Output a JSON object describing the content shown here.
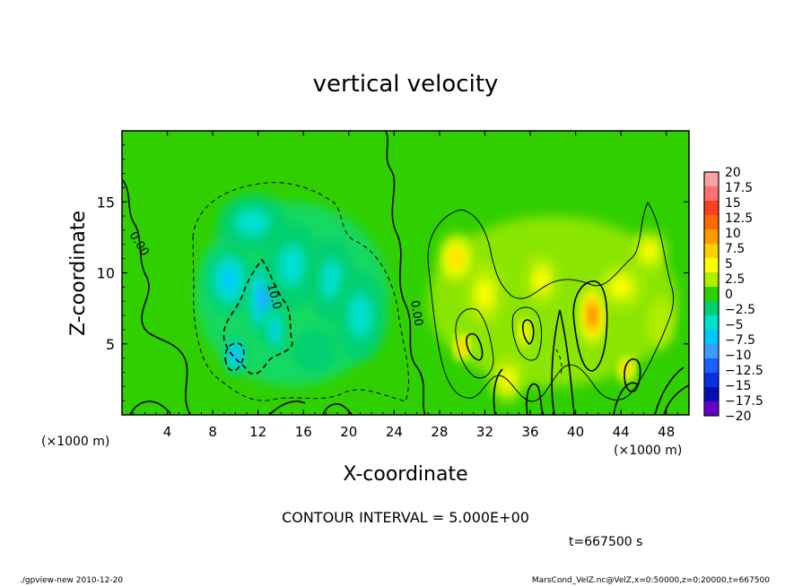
{
  "chart_data": {
    "type": "heatmap",
    "title": "vertical velocity",
    "xlabel": "X-coordinate",
    "ylabel": "Z-coordinate",
    "x_unit_label": "(×1000 m)",
    "x_unit_label_right": "(×1000 m)",
    "xlim": [
      0,
      50
    ],
    "ylim": [
      0,
      20
    ],
    "xticks": [
      4,
      8,
      12,
      16,
      20,
      24,
      28,
      32,
      36,
      40,
      44,
      48
    ],
    "yticks": [
      5,
      10,
      15
    ],
    "colorbar": {
      "labels": [
        "20",
        "17.5",
        "15",
        "12.5",
        "10",
        "7.5",
        "5",
        "2.5",
        "0",
        "−2.5",
        "−5",
        "−7.5",
        "−10",
        "−12.5",
        "−15",
        "−17.5",
        "−20"
      ],
      "colors": [
        "#ffa0a0",
        "#ff7070",
        "#ff4020",
        "#ff6a00",
        "#ff9a00",
        "#ffd000",
        "#ffff00",
        "#b0ee00",
        "#30d000",
        "#00d070",
        "#00e0d0",
        "#00c8ff",
        "#3a9cff",
        "#1a60ff",
        "#0830e0",
        "#0010b0",
        "#6a00c8"
      ]
    },
    "contour_labels": [
      "0.00",
      "10.0",
      "0.00"
    ],
    "contour_interval": "CONTOUR INTERVAL = 5.000E+00",
    "time_label": "t=667500 s",
    "blobs": [
      {
        "sign": "neg",
        "x": 9.5,
        "z": 9.5,
        "sx": 2.2,
        "sy": 2.5,
        "w": -6.5
      },
      {
        "sign": "neg",
        "x": 12.5,
        "z": 8.2,
        "sx": 1.6,
        "sy": 2.8,
        "w": -10
      },
      {
        "sign": "neg",
        "x": 10.0,
        "z": 4.2,
        "sx": 1.0,
        "sy": 1.4,
        "w": -9
      },
      {
        "sign": "neg",
        "x": 13.5,
        "z": 6.0,
        "sx": 1.0,
        "sy": 1.8,
        "w": -7
      },
      {
        "sign": "neg",
        "x": 15.0,
        "z": 10.5,
        "sx": 2.5,
        "sy": 3.0,
        "w": -5
      },
      {
        "sign": "neg",
        "x": 18.5,
        "z": 9.5,
        "sx": 2.0,
        "sy": 3.0,
        "w": -4.5
      },
      {
        "sign": "neg",
        "x": 21.0,
        "z": 7.0,
        "sx": 2.2,
        "sy": 3.2,
        "w": -4
      },
      {
        "sign": "neg",
        "x": 11.5,
        "z": 13.5,
        "sx": 3.0,
        "sy": 2.0,
        "w": -4
      },
      {
        "sign": "neg",
        "x": 17.0,
        "z": 4.5,
        "sx": 2.0,
        "sy": 1.5,
        "w": -3.5
      },
      {
        "sign": "pos",
        "x": 41.5,
        "z": 7.0,
        "sx": 1.2,
        "sy": 2.2,
        "w": 13
      },
      {
        "sign": "pos",
        "x": 44.5,
        "z": 3.2,
        "sx": 0.8,
        "sy": 1.0,
        "w": 11
      },
      {
        "sign": "pos",
        "x": 30.0,
        "z": 4.8,
        "sx": 0.8,
        "sy": 1.0,
        "w": 9
      },
      {
        "sign": "pos",
        "x": 35.5,
        "z": 5.8,
        "sx": 0.7,
        "sy": 1.2,
        "w": 8
      },
      {
        "sign": "pos",
        "x": 29.5,
        "z": 11.0,
        "sx": 1.6,
        "sy": 1.8,
        "w": 7
      },
      {
        "sign": "pos",
        "x": 37.0,
        "z": 9.5,
        "sx": 1.5,
        "sy": 1.8,
        "w": 6
      },
      {
        "sign": "pos",
        "x": 32.0,
        "z": 8.5,
        "sx": 1.6,
        "sy": 2.2,
        "w": 5
      },
      {
        "sign": "pos",
        "x": 46.5,
        "z": 11.5,
        "sx": 1.5,
        "sy": 1.5,
        "w": 4.5
      },
      {
        "sign": "pos",
        "x": 44.0,
        "z": 9.0,
        "sx": 2.0,
        "sy": 1.6,
        "w": 4
      },
      {
        "sign": "pos",
        "x": 34.0,
        "z": 2.5,
        "sx": 1.5,
        "sy": 1.6,
        "w": 4
      },
      {
        "sign": "pos",
        "x": 47.5,
        "z": 6.5,
        "sx": 1.2,
        "sy": 1.8,
        "w": 3.5
      }
    ]
  },
  "footer": {
    "left": "./gpview-new  2010-12-20",
    "right": "MarsCond_VelZ.nc@VelZ,x=0:50000,z=0:20000,t=667500"
  }
}
